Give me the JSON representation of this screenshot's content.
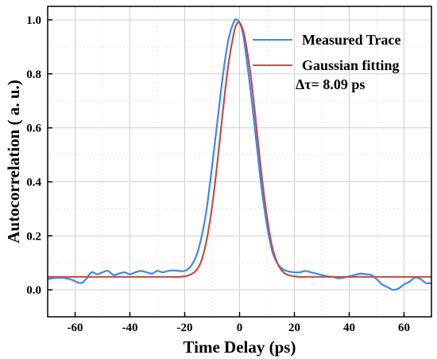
{
  "chart_data": {
    "type": "line",
    "xlabel": "Time Delay (ps)",
    "ylabel": "Autocorrelation ( a. u.)",
    "xlim": [
      -70,
      70
    ],
    "ylim": [
      -0.1,
      1.05
    ],
    "xticks": [
      -60,
      -40,
      -20,
      0,
      20,
      40,
      60
    ],
    "yticks": [
      0.0,
      0.2,
      0.4,
      0.6,
      0.8,
      1.0
    ],
    "xtick_labels": [
      "-60",
      "-40",
      "-20",
      "0",
      "20",
      "40",
      "60"
    ],
    "ytick_labels": [
      "0.0",
      "0.2",
      "0.4",
      "0.6",
      "0.8",
      "1.0"
    ],
    "grid": true,
    "legend_position": "top-right",
    "annotation": "Δτ= 8.09 ps",
    "series": [
      {
        "name": "Measured Trace",
        "color": "#3f88e6",
        "x": [
          -70,
          -66,
          -62,
          -58,
          -56,
          -54,
          -52,
          -50,
          -48,
          -46,
          -44,
          -42,
          -40,
          -38,
          -36,
          -34,
          -32,
          -30,
          -28,
          -26,
          -24,
          -22,
          -20,
          -18,
          -16,
          -14,
          -12,
          -10,
          -8,
          -6,
          -4,
          -2,
          -1,
          0,
          1,
          2,
          4,
          6,
          8,
          10,
          12,
          14,
          16,
          18,
          20,
          22,
          24,
          26,
          28,
          30,
          32,
          34,
          36,
          38,
          40,
          42,
          44,
          46,
          48,
          50,
          52,
          54,
          56,
          58,
          60,
          62,
          64,
          66,
          68,
          70
        ],
        "y": [
          0.04,
          0.045,
          0.04,
          0.025,
          0.04,
          0.065,
          0.058,
          0.065,
          0.07,
          0.055,
          0.06,
          0.065,
          0.058,
          0.065,
          0.07,
          0.065,
          0.06,
          0.07,
          0.065,
          0.07,
          0.072,
          0.07,
          0.07,
          0.085,
          0.12,
          0.19,
          0.3,
          0.46,
          0.63,
          0.8,
          0.93,
          0.995,
          1.0,
          0.99,
          0.96,
          0.9,
          0.74,
          0.56,
          0.38,
          0.24,
          0.14,
          0.095,
          0.075,
          0.068,
          0.065,
          0.065,
          0.07,
          0.065,
          0.06,
          0.055,
          0.05,
          0.048,
          0.043,
          0.045,
          0.05,
          0.055,
          0.06,
          0.058,
          0.055,
          0.04,
          0.02,
          0.01,
          0.0,
          0.005,
          0.02,
          0.03,
          0.045,
          0.04,
          0.025,
          0.025
        ]
      },
      {
        "name": "Gaussian fitting",
        "color": "#c0504d",
        "x": [
          -70,
          -60,
          -50,
          -40,
          -30,
          -25,
          -22,
          -20,
          -18,
          -16,
          -14,
          -12,
          -10,
          -8,
          -6,
          -4,
          -2,
          -1,
          0,
          1,
          2,
          4,
          6,
          8,
          10,
          12,
          14,
          16,
          18,
          20,
          22,
          25,
          30,
          40,
          50,
          60,
          70
        ],
        "y": [
          0.048,
          0.048,
          0.048,
          0.048,
          0.048,
          0.048,
          0.048,
          0.05,
          0.056,
          0.07,
          0.105,
          0.185,
          0.31,
          0.48,
          0.67,
          0.84,
          0.955,
          0.985,
          0.99,
          0.97,
          0.93,
          0.8,
          0.62,
          0.43,
          0.27,
          0.155,
          0.095,
          0.065,
          0.054,
          0.05,
          0.048,
          0.048,
          0.048,
          0.048,
          0.048,
          0.048,
          0.048
        ]
      }
    ]
  }
}
